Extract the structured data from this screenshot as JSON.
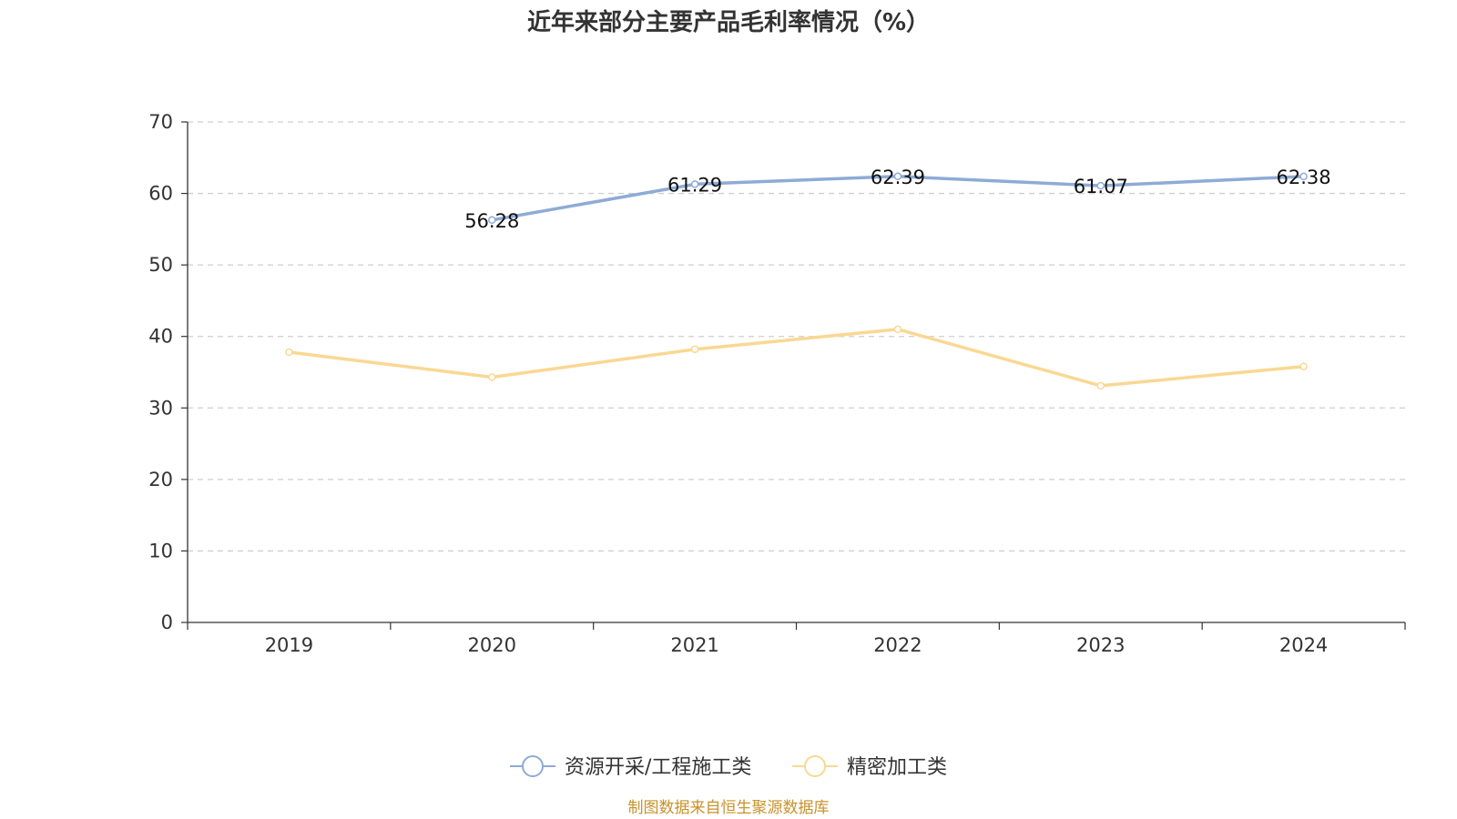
{
  "chart_data": {
    "type": "line",
    "title": "近年来部分主要产品毛利率情况（%）",
    "categories": [
      "2019",
      "2020",
      "2021",
      "2022",
      "2023",
      "2024"
    ],
    "ylim": [
      0,
      70
    ],
    "yticks": [
      0,
      10,
      20,
      30,
      40,
      50,
      60,
      70
    ],
    "grid": true,
    "legend_position": "bottom-center",
    "series": [
      {
        "name": "资源开采/工程施工类",
        "color": "#8eabd6",
        "values": [
          null,
          56.28,
          61.29,
          62.39,
          61.07,
          62.38
        ],
        "data_labels": [
          null,
          "56.28",
          "61.29",
          "62.39",
          "61.07",
          "62.38"
        ]
      },
      {
        "name": "精密加工类",
        "color": "#fad893",
        "values": [
          37.8,
          34.3,
          38.2,
          41.0,
          33.1,
          35.8
        ],
        "data_labels": [
          null,
          null,
          null,
          null,
          null,
          null
        ]
      }
    ]
  },
  "source": {
    "text": "制图数据来自恒生聚源数据库",
    "color": "#c8922b"
  }
}
